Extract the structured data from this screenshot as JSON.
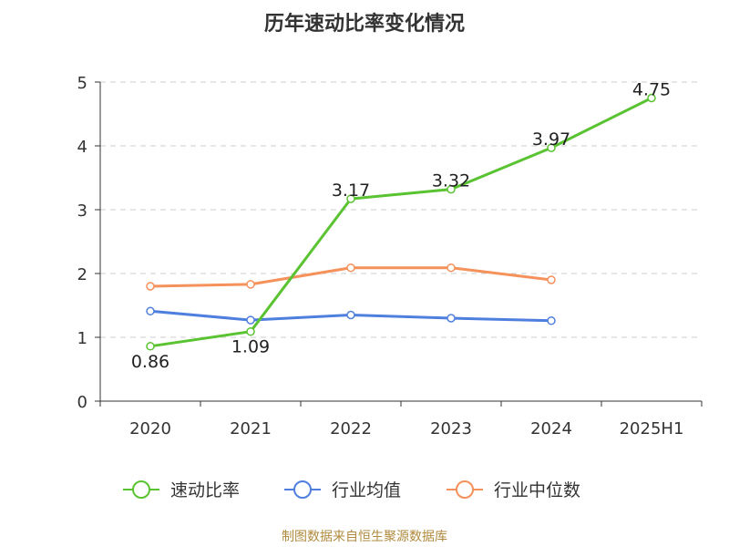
{
  "chart_data": {
    "type": "line",
    "title": "历年速动比率变化情况",
    "categories": [
      "2020",
      "2021",
      "2022",
      "2023",
      "2024",
      "2025H1"
    ],
    "ylim": [
      0,
      5
    ],
    "yticks": [
      "0",
      "1",
      "2",
      "3",
      "4",
      "5"
    ],
    "grid": true,
    "legend_position": "bottom",
    "series": [
      {
        "name": "速动比率",
        "color": "#5ac331",
        "values": [
          0.86,
          1.09,
          3.17,
          3.32,
          3.97,
          4.75
        ],
        "labels": [
          "0.86",
          "1.09",
          "3.17",
          "3.32",
          "3.97",
          "4.75"
        ]
      },
      {
        "name": "行业均值",
        "color": "#4f7fde",
        "values": [
          1.41,
          1.27,
          1.35,
          1.3,
          1.26,
          null
        ]
      },
      {
        "name": "行业中位数",
        "color": "#f5915a",
        "values": [
          1.8,
          1.83,
          2.09,
          2.09,
          1.9,
          null
        ]
      }
    ]
  },
  "footer": {
    "source": "制图数据来自恒生聚源数据库"
  }
}
